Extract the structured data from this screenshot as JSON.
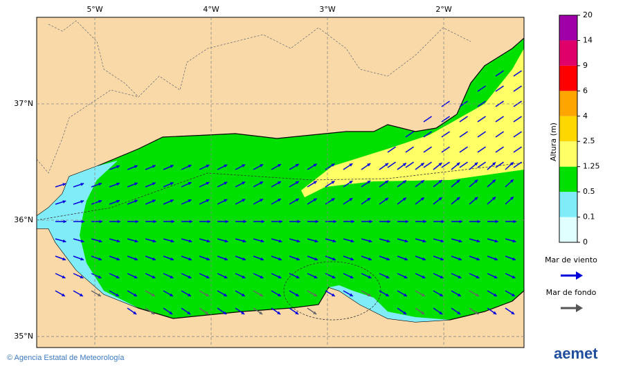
{
  "map": {
    "xlim": [
      -5.5,
      -1.31
    ],
    "ylim": [
      34.905,
      37.744
    ],
    "xticks": [
      {
        "value": -5,
        "label": "5°W"
      },
      {
        "value": -4,
        "label": "4°W"
      },
      {
        "value": -3,
        "label": "3°W"
      },
      {
        "value": -2,
        "label": "2°W"
      }
    ],
    "yticks": [
      {
        "value": 37,
        "label": "37°N"
      },
      {
        "value": 36,
        "label": "36°N"
      },
      {
        "value": 35,
        "label": "35°N"
      }
    ]
  },
  "colorbar": {
    "title": "Altura (m)",
    "levels": [
      0,
      0.1,
      0.5,
      1.25,
      2.5,
      4,
      6,
      9,
      14,
      20
    ],
    "colors": [
      "#e0ffff",
      "#80ecf8",
      "#00e000",
      "#ffff66",
      "#ffd700",
      "#ffa500",
      "#ff0000",
      "#e0006a",
      "#a000a8"
    ]
  },
  "legend": {
    "items": [
      {
        "name": "Mar de viento",
        "color": "#0000dd"
      },
      {
        "name": "Mar de fondo",
        "color": "#555555"
      }
    ]
  },
  "footer": {
    "credit": "© Agencia Estatal de Meteorología",
    "logo": "aemet"
  }
}
